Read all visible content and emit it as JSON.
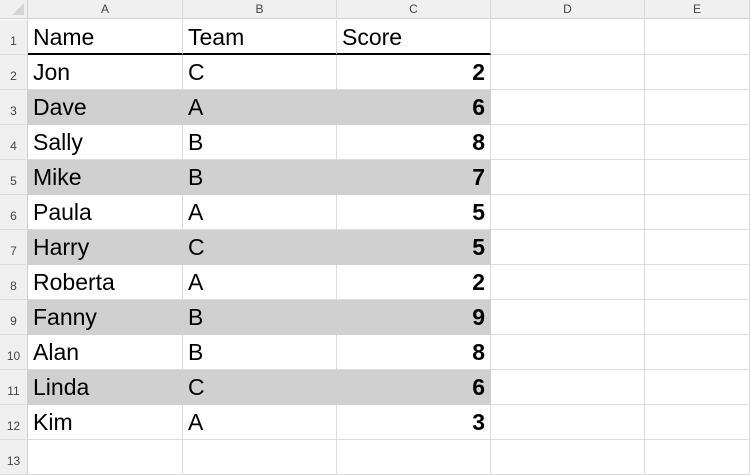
{
  "columns": [
    "A",
    "B",
    "C",
    "D",
    "E"
  ],
  "header": [
    "Name",
    "Team",
    "Score"
  ],
  "rows": [
    [
      "Jon",
      "C",
      "2"
    ],
    [
      "Dave",
      "A",
      "6"
    ],
    [
      "Sally",
      "B",
      "8"
    ],
    [
      "Mike",
      "B",
      "7"
    ],
    [
      "Paula",
      "A",
      "5"
    ],
    [
      "Harry",
      "C",
      "5"
    ],
    [
      "Roberta",
      "A",
      "2"
    ],
    [
      "Fanny",
      "B",
      "9"
    ],
    [
      "Alan",
      "B",
      "8"
    ],
    [
      "Linda",
      "C",
      "6"
    ],
    [
      "Kim",
      "A",
      "3"
    ]
  ],
  "row_numbers": [
    "1",
    "2",
    "3",
    "4",
    "5",
    "6",
    "7",
    "8",
    "9",
    "10",
    "11",
    "12",
    "13"
  ],
  "colors": {
    "band": "#d0d0d0",
    "header_bg": "#f0f0f0"
  }
}
